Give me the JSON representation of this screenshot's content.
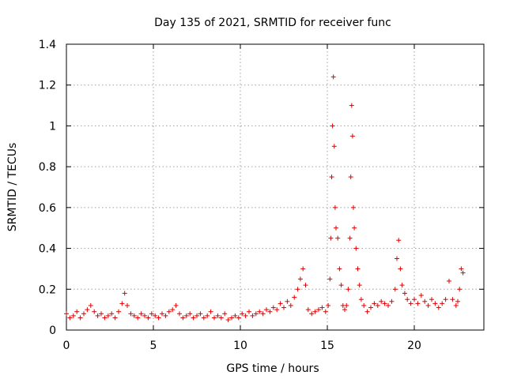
{
  "chart_data": {
    "type": "scatter",
    "title": "Day 135 of 2021, SRMTID for receiver func",
    "xlabel": "GPS time / hours",
    "ylabel": "SRMTID / TECUs",
    "xlim": [
      0,
      24
    ],
    "ylim": [
      0,
      1.4
    ],
    "xticks": [
      0,
      5,
      10,
      15,
      20
    ],
    "xtick_labels": [
      "0",
      "5",
      "10",
      "15",
      "20"
    ],
    "yticks": [
      0,
      0.2,
      0.4,
      0.6,
      0.8,
      1.0,
      1.2,
      1.4
    ],
    "ytick_labels": [
      "0",
      "0.2",
      "0.4",
      "0.6",
      "0.8",
      "1",
      "1.2",
      "1.4"
    ],
    "grid": true,
    "marker": "+",
    "color": "#e00000",
    "series": [
      {
        "name": "SRMTID",
        "points": [
          [
            0.0,
            0.08
          ],
          [
            0.2,
            0.06
          ],
          [
            0.4,
            0.07
          ],
          [
            0.6,
            0.09
          ],
          [
            0.8,
            0.06
          ],
          [
            1.0,
            0.08
          ],
          [
            1.2,
            0.1
          ],
          [
            1.4,
            0.12
          ],
          [
            1.6,
            0.09
          ],
          [
            1.8,
            0.07
          ],
          [
            2.0,
            0.08
          ],
          [
            2.2,
            0.06
          ],
          [
            2.4,
            0.07
          ],
          [
            2.6,
            0.08
          ],
          [
            2.8,
            0.06
          ],
          [
            3.0,
            0.09
          ],
          [
            3.2,
            0.13
          ],
          [
            3.35,
            0.18
          ],
          [
            3.5,
            0.12
          ],
          [
            3.7,
            0.08
          ],
          [
            3.9,
            0.07
          ],
          [
            4.1,
            0.06
          ],
          [
            4.3,
            0.08
          ],
          [
            4.5,
            0.07
          ],
          [
            4.7,
            0.06
          ],
          [
            4.9,
            0.08
          ],
          [
            5.1,
            0.07
          ],
          [
            5.3,
            0.06
          ],
          [
            5.5,
            0.08
          ],
          [
            5.7,
            0.07
          ],
          [
            5.9,
            0.09
          ],
          [
            6.1,
            0.1
          ],
          [
            6.3,
            0.12
          ],
          [
            6.5,
            0.08
          ],
          [
            6.7,
            0.06
          ],
          [
            6.9,
            0.07
          ],
          [
            7.1,
            0.08
          ],
          [
            7.3,
            0.06
          ],
          [
            7.5,
            0.07
          ],
          [
            7.7,
            0.08
          ],
          [
            7.9,
            0.06
          ],
          [
            8.1,
            0.07
          ],
          [
            8.3,
            0.09
          ],
          [
            8.5,
            0.06
          ],
          [
            8.7,
            0.07
          ],
          [
            8.9,
            0.06
          ],
          [
            9.1,
            0.08
          ],
          [
            9.3,
            0.05
          ],
          [
            9.5,
            0.06
          ],
          [
            9.7,
            0.07
          ],
          [
            9.9,
            0.06
          ],
          [
            10.1,
            0.08
          ],
          [
            10.3,
            0.07
          ],
          [
            10.5,
            0.09
          ],
          [
            10.7,
            0.07
          ],
          [
            10.9,
            0.08
          ],
          [
            11.1,
            0.09
          ],
          [
            11.3,
            0.08
          ],
          [
            11.5,
            0.1
          ],
          [
            11.7,
            0.09
          ],
          [
            11.9,
            0.11
          ],
          [
            12.1,
            0.1
          ],
          [
            12.3,
            0.13
          ],
          [
            12.5,
            0.11
          ],
          [
            12.7,
            0.14
          ],
          [
            12.9,
            0.12
          ],
          [
            13.1,
            0.16
          ],
          [
            13.3,
            0.2
          ],
          [
            13.45,
            0.25
          ],
          [
            13.6,
            0.3
          ],
          [
            13.75,
            0.22
          ],
          [
            13.9,
            0.1
          ],
          [
            14.1,
            0.08
          ],
          [
            14.3,
            0.09
          ],
          [
            14.5,
            0.1
          ],
          [
            14.7,
            0.11
          ],
          [
            14.9,
            0.09
          ],
          [
            15.05,
            0.12
          ],
          [
            15.15,
            0.25
          ],
          [
            15.2,
            0.45
          ],
          [
            15.25,
            0.75
          ],
          [
            15.3,
            1.0
          ],
          [
            15.35,
            1.24
          ],
          [
            15.4,
            0.9
          ],
          [
            15.45,
            0.6
          ],
          [
            15.5,
            0.5
          ],
          [
            15.6,
            0.45
          ],
          [
            15.7,
            0.3
          ],
          [
            15.8,
            0.22
          ],
          [
            15.9,
            0.12
          ],
          [
            16.0,
            0.1
          ],
          [
            16.1,
            0.12
          ],
          [
            16.2,
            0.2
          ],
          [
            16.3,
            0.45
          ],
          [
            16.35,
            0.75
          ],
          [
            16.4,
            1.1
          ],
          [
            16.45,
            0.95
          ],
          [
            16.5,
            0.6
          ],
          [
            16.55,
            0.5
          ],
          [
            16.65,
            0.4
          ],
          [
            16.75,
            0.3
          ],
          [
            16.85,
            0.22
          ],
          [
            16.95,
            0.15
          ],
          [
            17.1,
            0.12
          ],
          [
            17.3,
            0.09
          ],
          [
            17.5,
            0.11
          ],
          [
            17.7,
            0.13
          ],
          [
            17.9,
            0.12
          ],
          [
            18.1,
            0.14
          ],
          [
            18.3,
            0.13
          ],
          [
            18.5,
            0.12
          ],
          [
            18.7,
            0.14
          ],
          [
            18.9,
            0.2
          ],
          [
            19.0,
            0.35
          ],
          [
            19.1,
            0.44
          ],
          [
            19.2,
            0.3
          ],
          [
            19.3,
            0.22
          ],
          [
            19.45,
            0.18
          ],
          [
            19.6,
            0.15
          ],
          [
            19.8,
            0.13
          ],
          [
            20.0,
            0.15
          ],
          [
            20.2,
            0.13
          ],
          [
            20.4,
            0.17
          ],
          [
            20.6,
            0.14
          ],
          [
            20.8,
            0.12
          ],
          [
            21.0,
            0.15
          ],
          [
            21.2,
            0.13
          ],
          [
            21.4,
            0.11
          ],
          [
            21.6,
            0.13
          ],
          [
            21.8,
            0.15
          ],
          [
            22.0,
            0.24
          ],
          [
            22.2,
            0.15
          ],
          [
            22.4,
            0.12
          ],
          [
            22.5,
            0.14
          ],
          [
            22.6,
            0.2
          ],
          [
            22.7,
            0.3
          ],
          [
            22.8,
            0.28
          ]
        ]
      }
    ]
  }
}
